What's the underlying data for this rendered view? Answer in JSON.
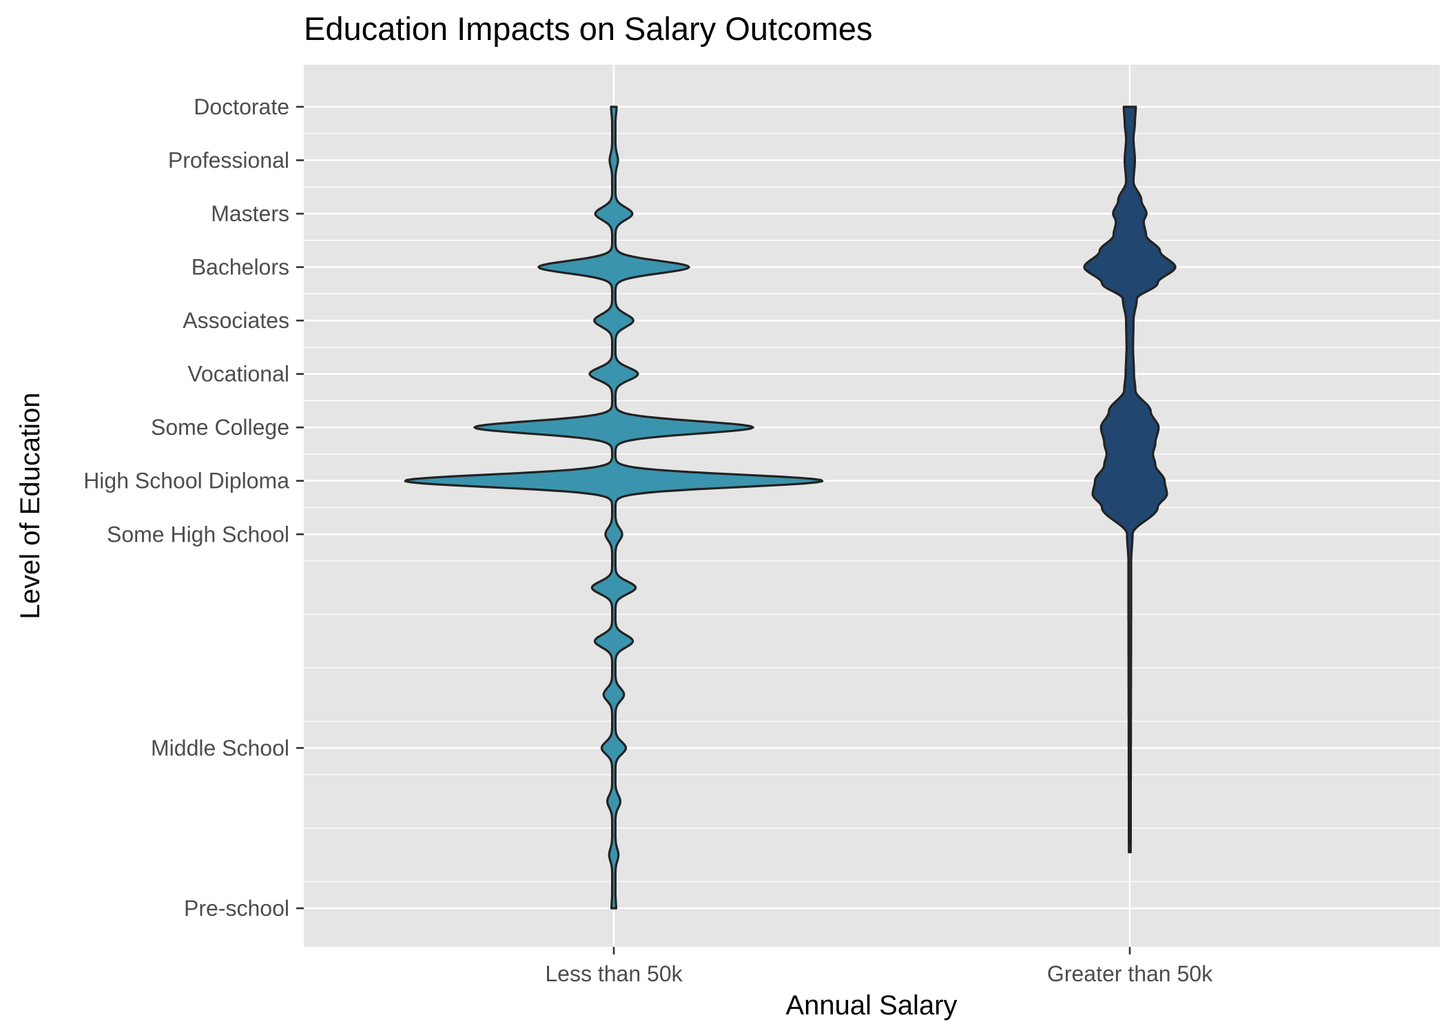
{
  "chart_data": {
    "type": "violin",
    "title": "Education Impacts on Salary Outcomes",
    "xlabel": "Annual Salary",
    "ylabel": "Level of Education",
    "categories": [
      "Less than 50k",
      "Greater than 50k"
    ],
    "y_axis": {
      "range": [
        1,
        16
      ],
      "ticks": [
        {
          "value": 1,
          "label": "Pre-school"
        },
        {
          "value": 4,
          "label": "Middle School"
        },
        {
          "value": 8,
          "label": "Some High School"
        },
        {
          "value": 9,
          "label": "High School Diploma"
        },
        {
          "value": 10,
          "label": "Some College"
        },
        {
          "value": 11,
          "label": "Vocational"
        },
        {
          "value": 12,
          "label": "Associates"
        },
        {
          "value": 13,
          "label": "Bachelors"
        },
        {
          "value": 14,
          "label": "Masters"
        },
        {
          "value": 15,
          "label": "Professional"
        },
        {
          "value": 16,
          "label": "Doctorate"
        }
      ]
    },
    "series": [
      {
        "category": "Less than 50k",
        "fill": "#3b94ad",
        "range": [
          1,
          16
        ],
        "peaks": [
          {
            "y": 1,
            "half_width": 0.005
          },
          {
            "y": 2,
            "half_width": 0.01
          },
          {
            "y": 3,
            "half_width": 0.014
          },
          {
            "y": 4,
            "half_width": 0.026
          },
          {
            "y": 5,
            "half_width": 0.022
          },
          {
            "y": 6,
            "half_width": 0.041
          },
          {
            "y": 7,
            "half_width": 0.047
          },
          {
            "y": 8,
            "half_width": 0.018
          },
          {
            "y": 9,
            "half_width": 0.45
          },
          {
            "y": 10,
            "half_width": 0.3
          },
          {
            "y": 11,
            "half_width": 0.052
          },
          {
            "y": 12,
            "half_width": 0.042
          },
          {
            "y": 13,
            "half_width": 0.162
          },
          {
            "y": 14,
            "half_width": 0.04
          },
          {
            "y": 15,
            "half_width": 0.009
          },
          {
            "y": 16,
            "half_width": 0.006
          }
        ]
      },
      {
        "category": "Greater than 50k",
        "fill": "#21466f",
        "range": [
          2.05,
          16
        ],
        "profile": [
          [
            2.05,
            0.002
          ],
          [
            7.5,
            0.003
          ],
          [
            8.0,
            0.006
          ],
          [
            8.5,
            0.06
          ],
          [
            8.75,
            0.08
          ],
          [
            9.0,
            0.075
          ],
          [
            9.3,
            0.055
          ],
          [
            9.5,
            0.05
          ],
          [
            9.7,
            0.055
          ],
          [
            10.0,
            0.062
          ],
          [
            10.3,
            0.045
          ],
          [
            10.7,
            0.012
          ],
          [
            11.0,
            0.009
          ],
          [
            11.5,
            0.007
          ],
          [
            12.0,
            0.008
          ],
          [
            12.4,
            0.015
          ],
          [
            12.7,
            0.06
          ],
          [
            13.0,
            0.098
          ],
          [
            13.3,
            0.065
          ],
          [
            13.6,
            0.035
          ],
          [
            13.85,
            0.03
          ],
          [
            14.0,
            0.036
          ],
          [
            14.25,
            0.025
          ],
          [
            14.6,
            0.008
          ],
          [
            15.0,
            0.011
          ],
          [
            15.4,
            0.008
          ],
          [
            15.7,
            0.011
          ],
          [
            16.0,
            0.013
          ]
        ]
      }
    ],
    "grid": true,
    "legend": "none",
    "colors": {
      "panel_background": "#e5e5e5",
      "grid_major": "#ffffff",
      "outline": "#222222"
    }
  }
}
